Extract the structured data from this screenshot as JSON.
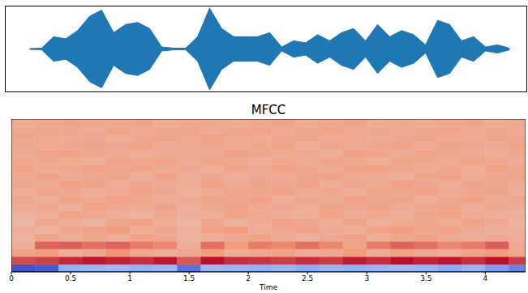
{
  "chart_data": [
    {
      "type": "area",
      "color": "#1f77b4",
      "tick_labels": false,
      "xlim": [
        0,
        4.34
      ],
      "ylim": [
        -1,
        1
      ],
      "x": [
        0,
        0.1,
        0.2,
        0.3,
        0.4,
        0.5,
        0.6,
        0.7,
        0.8,
        0.9,
        1.0,
        1.1,
        1.2,
        1.3,
        1.4,
        1.5,
        1.6,
        1.7,
        1.8,
        1.9,
        2.0,
        2.1,
        2.2,
        2.3,
        2.4,
        2.5,
        2.6,
        2.7,
        2.8,
        2.9,
        3.0,
        3.1,
        3.2,
        3.3,
        3.4,
        3.5,
        3.6,
        3.7,
        3.8,
        3.9,
        4.0,
        4.1,
        4.2,
        4.3
      ],
      "values": [
        null,
        null,
        0.01,
        0.02,
        0.3,
        0.25,
        0.45,
        0.8,
        0.95,
        0.4,
        0.6,
        0.65,
        0.5,
        0.05,
        0.02,
        0.02,
        0.3,
        1.0,
        0.5,
        0.3,
        0.3,
        0.3,
        0.4,
        0.05,
        0.2,
        0.15,
        0.35,
        0.2,
        0.4,
        0.5,
        0.2,
        0.6,
        0.3,
        0.45,
        0.35,
        0.1,
        0.7,
        0.6,
        0.2,
        0.3,
        0.05,
        0.1,
        0.02,
        null
      ]
    },
    {
      "type": "heatmap",
      "title": "MFCC",
      "x_label": "Time",
      "tick_labels": "x",
      "xlim": [
        0,
        4.34
      ],
      "xticks": [
        0,
        0.5,
        1,
        1.5,
        2,
        2.5,
        3,
        3.5,
        4
      ],
      "ylim": [
        0,
        20
      ],
      "color_range": [
        -250,
        250
      ],
      "x_bins": [
        0,
        0.2,
        0.4,
        0.6,
        0.8,
        1.0,
        1.2,
        1.4,
        1.6,
        1.8,
        2.0,
        2.2,
        2.4,
        2.6,
        2.8,
        3.0,
        3.2,
        3.4,
        3.6,
        3.8,
        4.0,
        4.2,
        4.4
      ],
      "cells": [
        [
          -240,
          -230,
          -120,
          -110,
          -100,
          -120,
          -110,
          -200,
          -100,
          -110,
          -120,
          -110,
          -130,
          -110,
          -120,
          -110,
          -100,
          -110,
          -130,
          -110,
          -150,
          -180
        ],
        [
          190,
          200,
          220,
          235,
          225,
          215,
          235,
          180,
          240,
          215,
          210,
          200,
          215,
          205,
          230,
          215,
          240,
          225,
          235,
          215,
          240,
          205
        ],
        [
          110,
          120,
          90,
          100,
          130,
          100,
          90,
          100,
          120,
          90,
          100,
          110,
          95,
          100,
          120,
          90,
          110,
          100,
          90,
          110,
          120,
          100
        ],
        [
          90,
          170,
          175,
          160,
          170,
          150,
          140,
          90,
          160,
          120,
          150,
          140,
          160,
          140,
          110,
          150,
          170,
          160,
          140,
          150,
          175,
          100
        ],
        [
          80,
          110,
          90,
          100,
          90,
          110,
          100,
          80,
          90,
          100,
          110,
          95,
          80,
          100,
          110,
          90,
          100,
          110,
          95,
          90,
          100,
          90
        ],
        [
          90,
          80,
          100,
          110,
          120,
          90,
          100,
          85,
          110,
          120,
          90,
          100,
          110,
          95,
          90,
          110,
          120,
          100,
          110,
          95,
          90,
          85
        ],
        [
          70,
          100,
          90,
          80,
          100,
          110,
          90,
          75,
          100,
          80,
          95,
          110,
          100,
          90,
          105,
          85,
          95,
          100,
          90,
          110,
          100,
          80
        ],
        [
          80,
          90,
          110,
          100,
          90,
          80,
          100,
          85,
          90,
          110,
          100,
          90,
          85,
          110,
          95,
          100,
          90,
          105,
          110,
          95,
          90,
          85
        ],
        [
          95,
          100,
          85,
          110,
          100,
          95,
          105,
          90,
          100,
          110,
          95,
          100,
          90,
          105,
          100,
          110,
          95,
          100,
          105,
          90,
          100,
          95
        ],
        [
          100,
          90,
          105,
          95,
          110,
          100,
          90,
          95,
          105,
          100,
          110,
          90,
          100,
          95,
          110,
          100,
          105,
          90,
          100,
          110,
          95,
          100
        ],
        [
          90,
          105,
          100,
          90,
          95,
          110,
          100,
          85,
          95,
          105,
          100,
          110,
          95,
          100,
          90,
          105,
          100,
          110,
          95,
          100,
          105,
          90
        ],
        [
          100,
          95,
          110,
          105,
          90,
          100,
          95,
          90,
          110,
          95,
          105,
          100,
          110,
          90,
          100,
          95,
          110,
          100,
          90,
          105,
          100,
          95
        ],
        [
          95,
          110,
          95,
          100,
          105,
          90,
          110,
          95,
          100,
          90,
          100,
          95,
          105,
          110,
          95,
          100,
          90,
          105,
          110,
          95,
          100,
          105
        ],
        [
          105,
          95,
          100,
          110,
          100,
          105,
          95,
          100,
          90,
          105,
          95,
          110,
          100,
          95,
          105,
          110,
          100,
          95,
          100,
          90,
          110,
          100
        ],
        [
          100,
          100,
          95,
          90,
          110,
          100,
          105,
          95,
          105,
          100,
          90,
          100,
          95,
          105,
          100,
          90,
          105,
          100,
          95,
          110,
          100,
          95
        ],
        [
          95,
          105,
          110,
          100,
          95,
          90,
          100,
          100,
          95,
          110,
          105,
          95,
          100,
          90,
          110,
          105,
          95,
          105,
          100,
          95,
          90,
          100
        ],
        [
          100,
          95,
          100,
          105,
          100,
          110,
          95,
          95,
          100,
          95,
          100,
          105,
          90,
          100,
          95,
          100,
          110,
          95,
          105,
          100,
          95,
          105
        ],
        [
          105,
          100,
          95,
          100,
          90,
          100,
          105,
          100,
          110,
          100,
          95,
          100,
          105,
          95,
          100,
          95,
          100,
          105,
          95,
          100,
          105,
          100
        ],
        [
          100,
          105,
          100,
          95,
          105,
          95,
          100,
          105,
          95,
          100,
          105,
          95,
          100,
          105,
          95,
          100,
          95,
          100,
          105,
          95,
          100,
          95
        ],
        [
          95,
          100,
          105,
          100,
          100,
          105,
          95,
          100,
          100,
          95,
          100,
          105,
          95,
          100,
          105,
          95,
          100,
          95,
          100,
          105,
          95,
          100
        ]
      ]
    }
  ]
}
